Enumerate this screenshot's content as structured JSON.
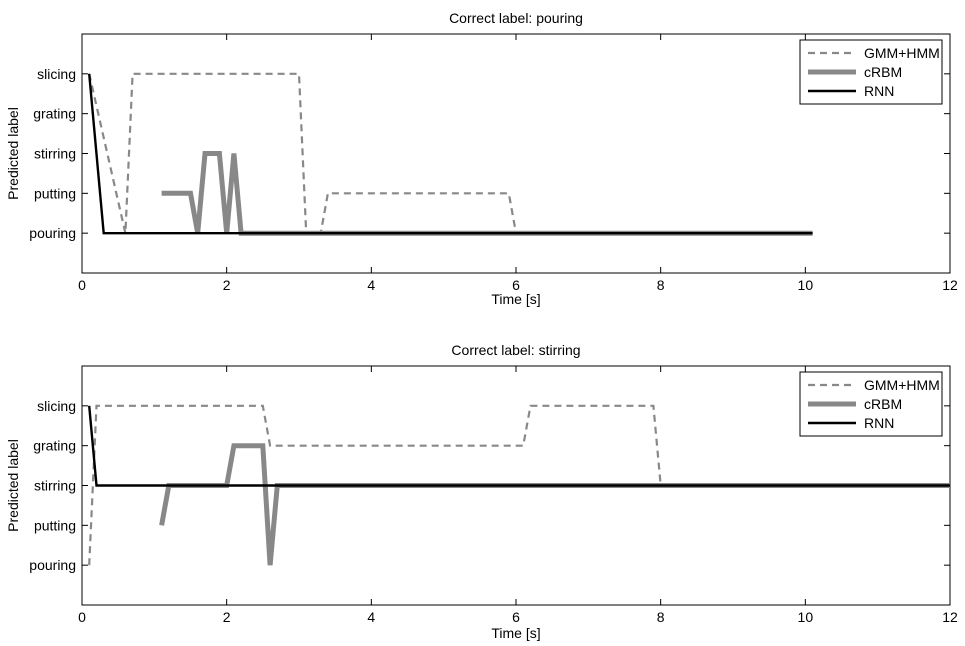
{
  "chart_data": [
    {
      "type": "line",
      "title": "Correct label: pouring",
      "xlabel": "Time [s]",
      "ylabel": "Predicted label",
      "xlim": [
        0,
        12
      ],
      "xticks": [
        0,
        2,
        4,
        6,
        8,
        10,
        12
      ],
      "categories": [
        "pouring",
        "putting",
        "stirring",
        "grating",
        "slicing"
      ],
      "legend": "top-right",
      "grid": false,
      "series": [
        {
          "name": "GMM+HMM",
          "style": "dashed",
          "color": "#888888",
          "x": [
            0.1,
            0.6,
            0.7,
            3.0,
            3.1,
            3.3,
            3.4,
            5.9,
            6.0,
            10.1
          ],
          "y": [
            "slicing",
            "pouring",
            "slicing",
            "slicing",
            "pouring",
            "pouring",
            "putting",
            "putting",
            "pouring",
            "pouring"
          ]
        },
        {
          "name": "cRBM",
          "style": "thick",
          "color": "#888888",
          "x": [
            1.1,
            1.5,
            1.6,
            1.7,
            1.9,
            2.0,
            2.1,
            2.2,
            10.1
          ],
          "y": [
            "putting",
            "putting",
            "pouring",
            "stirring",
            "stirring",
            "pouring",
            "stirring",
            "pouring",
            "pouring"
          ]
        },
        {
          "name": "RNN",
          "style": "solid",
          "color": "#000000",
          "x": [
            0.1,
            0.3,
            10.1
          ],
          "y": [
            "slicing",
            "pouring",
            "pouring"
          ]
        }
      ]
    },
    {
      "type": "line",
      "title": "Correct label: stirring",
      "xlabel": "Time [s]",
      "ylabel": "Predicted label",
      "xlim": [
        0,
        12
      ],
      "xticks": [
        0,
        2,
        4,
        6,
        8,
        10,
        12
      ],
      "categories": [
        "pouring",
        "putting",
        "stirring",
        "grating",
        "slicing"
      ],
      "legend": "top-right",
      "grid": false,
      "series": [
        {
          "name": "GMM+HMM",
          "style": "dashed",
          "color": "#888888",
          "x": [
            0.1,
            0.2,
            2.5,
            2.6,
            6.1,
            6.2,
            7.9,
            8.0,
            12.0
          ],
          "y": [
            "pouring",
            "slicing",
            "slicing",
            "grating",
            "grating",
            "slicing",
            "slicing",
            "stirring",
            "stirring"
          ]
        },
        {
          "name": "cRBM",
          "style": "thick",
          "color": "#888888",
          "x": [
            1.1,
            1.2,
            2.0,
            2.1,
            2.5,
            2.6,
            2.7,
            12.0
          ],
          "y": [
            "putting",
            "stirring",
            "stirring",
            "grating",
            "grating",
            "pouring",
            "stirring",
            "stirring"
          ]
        },
        {
          "name": "RNN",
          "style": "solid",
          "color": "#000000",
          "x": [
            0.1,
            0.2,
            12.0
          ],
          "y": [
            "slicing",
            "stirring",
            "stirring"
          ]
        }
      ]
    }
  ]
}
